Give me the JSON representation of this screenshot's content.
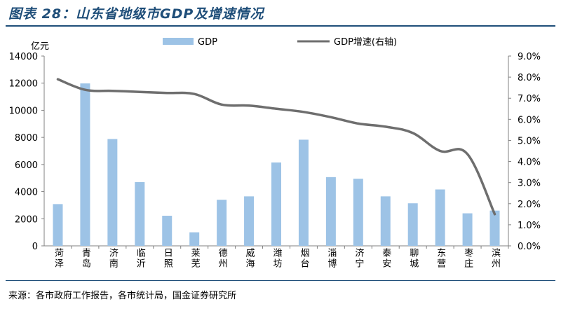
{
  "figure_title": "图表 28：山东省地级市GDP及增速情况",
  "source": "来源：各市政府工作报告，各市统计局，国金证券研究所",
  "colors": {
    "bar": "#9dc3e6",
    "line": "#6e6e6e",
    "title": "#1f4e79"
  },
  "chart_data": {
    "type": "bar",
    "categories": [
      "菏泽",
      "青岛",
      "济南",
      "临沂",
      "日照",
      "莱芜",
      "德州",
      "威海",
      "潍坊",
      "烟台",
      "淄博",
      "济宁",
      "泰安",
      "聊城",
      "东营",
      "枣庄",
      "滨州"
    ],
    "series": [
      {
        "name": "GDP",
        "type": "bar",
        "axis": "left",
        "values": [
          3080,
          11980,
          7880,
          4700,
          2220,
          1000,
          3400,
          3650,
          6150,
          7830,
          5070,
          4950,
          3650,
          3140,
          4160,
          2400,
          2600
        ]
      },
      {
        "name": "GDP增速(右轴)",
        "type": "line",
        "axis": "right",
        "values": [
          7.9,
          7.4,
          7.35,
          7.3,
          7.25,
          7.2,
          6.7,
          6.65,
          6.5,
          6.35,
          6.1,
          5.8,
          5.65,
          5.35,
          4.5,
          4.35,
          1.5
        ]
      }
    ],
    "y_left": {
      "unit_label": "亿元",
      "min": 0,
      "max": 14000,
      "ticks": [
        "0",
        "2000",
        "4000",
        "6000",
        "8000",
        "10000",
        "12000",
        "14000"
      ]
    },
    "y_right": {
      "min": 0,
      "max": 9,
      "ticks": [
        "0.0%",
        "1.0%",
        "2.0%",
        "3.0%",
        "4.0%",
        "5.0%",
        "6.0%",
        "7.0%",
        "8.0%",
        "9.0%"
      ]
    },
    "legend_position": "top",
    "grid": false
  }
}
